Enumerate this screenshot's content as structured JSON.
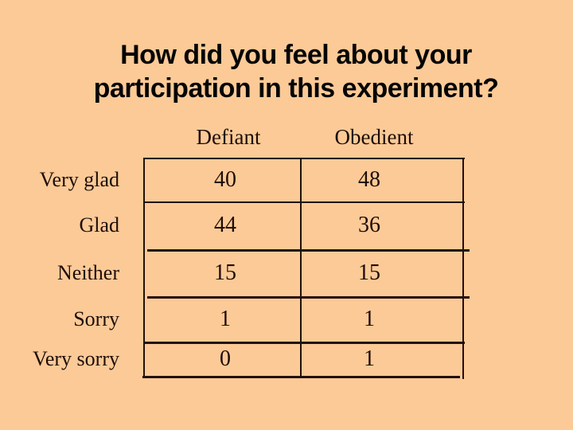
{
  "slide": {
    "background_color": "#fcca97",
    "line_color": "#23100a",
    "text_color": "#1e0d07",
    "title_line1": "How did you feel about your",
    "title_line2": "participation in this experiment?"
  },
  "chart_data": {
    "type": "table",
    "title": "How did you feel about your participation in this experiment?",
    "columns": [
      "Defiant",
      "Obedient"
    ],
    "rows": [
      {
        "label": "Very glad",
        "defiant": 40,
        "obedient": 48
      },
      {
        "label": "Glad",
        "defiant": 44,
        "obedient": 36
      },
      {
        "label": "Neither",
        "defiant": 15,
        "obedient": 15
      },
      {
        "label": "Sorry",
        "defiant": 1,
        "obedient": 1
      },
      {
        "label": "Very sorry",
        "defiant": 0,
        "obedient": 1
      }
    ]
  }
}
